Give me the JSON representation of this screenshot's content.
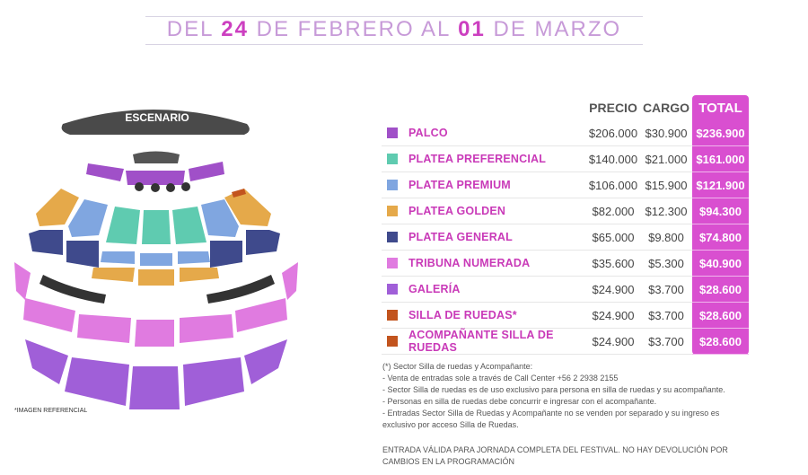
{
  "header": {
    "title_part1": "DEL ",
    "title_day1": "24",
    "title_part2": " DE FEBRERO AL ",
    "title_day2": "01",
    "title_part3": " DE MARZO"
  },
  "map": {
    "stage_label": "ESCENARIO",
    "note": "*IMAGEN REFERENCIAL"
  },
  "price_table": {
    "col_precio": "PRECIO",
    "col_cargo": "CARGO",
    "col_total": "TOTAL",
    "rows": [
      {
        "name": "PALCO",
        "precio": "$206.000",
        "cargo": "$30.900",
        "total": "$236.900",
        "color": "#a050c8"
      },
      {
        "name": "PLATEA PREFERENCIAL",
        "precio": "$140.000",
        "cargo": "$21.000",
        "total": "$161.000",
        "color": "#5fcbb0"
      },
      {
        "name": "PLATEA PREMIUM",
        "precio": "$106.000",
        "cargo": "$15.900",
        "total": "$121.900",
        "color": "#80a6e0"
      },
      {
        "name": "PLATEA GOLDEN",
        "precio": "$82.000",
        "cargo": "$12.300",
        "total": "$94.300",
        "color": "#e5a94a"
      },
      {
        "name": "PLATEA GENERAL",
        "precio": "$65.000",
        "cargo": "$9.800",
        "total": "$74.800",
        "color": "#3f4a8c"
      },
      {
        "name": "TRIBUNA NUMERADA",
        "precio": "$35.600",
        "cargo": "$5.300",
        "total": "$40.900",
        "color": "#e07be0"
      },
      {
        "name": "GALERÍA",
        "precio": "$24.900",
        "cargo": "$3.700",
        "total": "$28.600",
        "color": "#a05fd8"
      },
      {
        "name": "SILLA DE RUEDAS*",
        "precio": "$24.900",
        "cargo": "$3.700",
        "total": "$28.600",
        "color": "#c2541e"
      },
      {
        "name": "ACOMPAÑANTE SILLA DE RUEDAS",
        "precio": "$24.900",
        "cargo": "$3.700",
        "total": "$28.600",
        "color": "#c2541e"
      }
    ]
  },
  "notes": {
    "lines": [
      "(*) Sector Silla de ruedas y Acompañante:",
      "- Venta de entradas sole a través de Call Center +56 2 2938 2155",
      "- Sector Silla de ruedas es de uso exclusivo para persona en silla de ruedas y su acompañante.",
      "- Personas en silla de ruedas debe concurrir e ingresar con el acompañante.",
      "- Entradas Sector Silla de Ruedas y Acompañante no se venden por separado y su ingreso es",
      "exclusivo por acceso Silla de Ruedas."
    ],
    "final": "ENTRADA VÁLIDA PARA JORNADA COMPLETA DEL FESTIVAL. NO HAY DEVOLUCIÓN POR CAMBIOS EN LA PROGRAMACIÓN"
  }
}
